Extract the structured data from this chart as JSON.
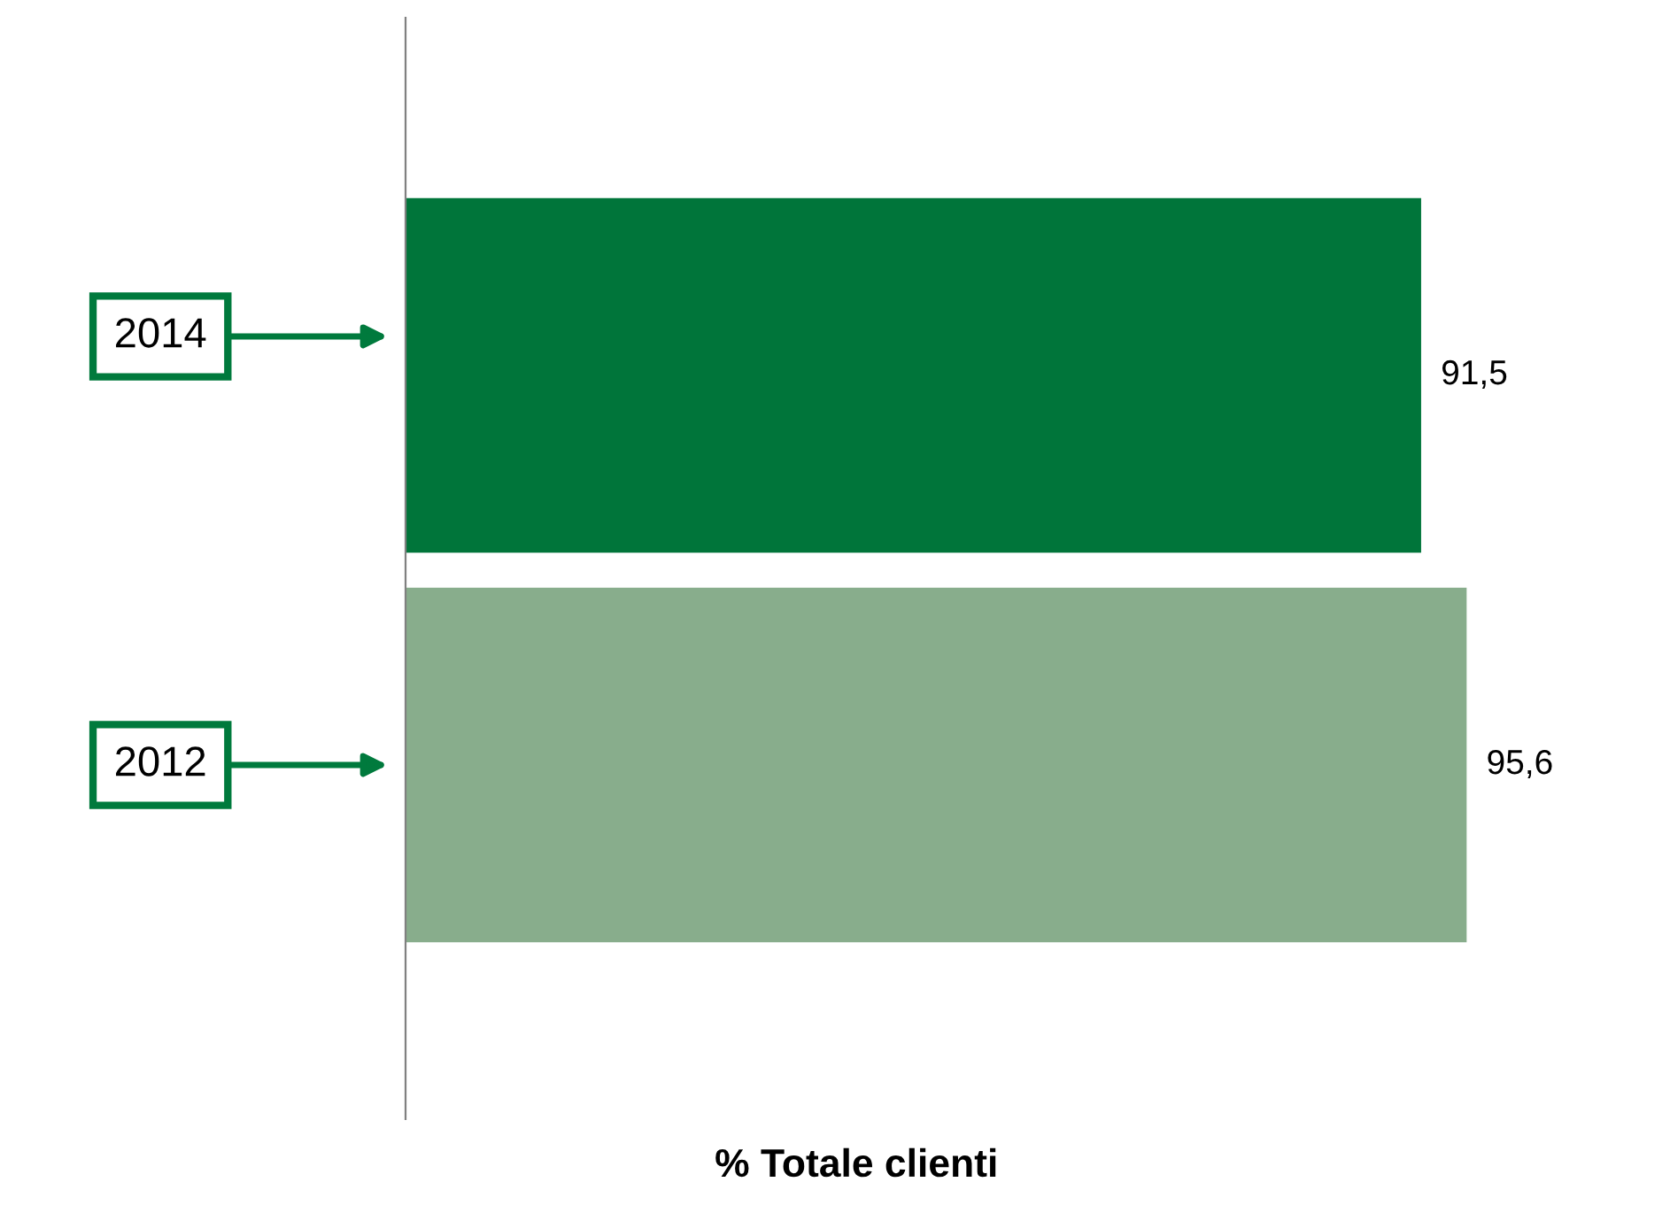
{
  "chart_data": {
    "type": "bar",
    "orientation": "horizontal",
    "categories": [
      "2014",
      "2012"
    ],
    "values": [
      91.5,
      95.6
    ],
    "colors": [
      "#00753a",
      "#88ad8c"
    ],
    "value_labels": [
      "91,5",
      "95,6"
    ],
    "xlabel": "% Totale clienti"
  }
}
